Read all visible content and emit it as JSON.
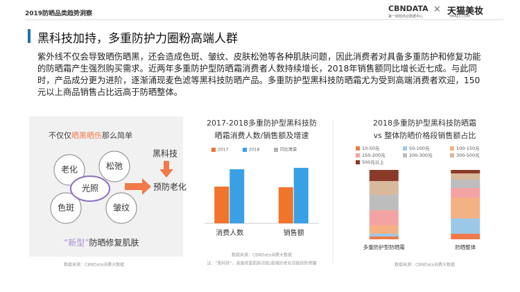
{
  "header": {
    "title": "2019防晒品类趋势洞察",
    "brand_1": "CBNDATA",
    "brand_1_sub": "第一财经商业数据中心",
    "brand_separator": "×",
    "brand_2": "天猫美妆",
    "brand_2_sub": "TMALL.COM"
  },
  "slide": {
    "title": "黑科技加持，多重防护力圈粉高端人群",
    "body": "紫外线不仅会导致晒伤晒黑，还会造成色斑、皱纹、皮肤松弛等各种肌肤问题，因此消费者对具备多重防护和修复功能的防晒霜产生强烈购买需求。近两年多重防护型防晒霜消费者人数持续增长，2018年销售额同比增长近七成。与此同时，产品成分更为进阶，逐渐涌现麦色滤等黑科技防晒产品。多重防护型黑科技防晒霜尤为受到高端消费者欢迎，150元以上商品销售占比远高于防晒整体。"
  },
  "diagram": {
    "heading_parts": [
      "不仅仅",
      "晒黑晒伤",
      "那么简单"
    ],
    "nodes": [
      "老化",
      "松弛",
      "光照",
      "色斑",
      "皱纹"
    ],
    "tech": "黑科技",
    "result": "预防老化",
    "caption_parts": [
      "“新型”",
      "防晒修复肌肤"
    ],
    "source": "数据来源：CBNData消费大数据"
  },
  "chart_data": [
    {
      "type": "bar",
      "title": "2017-2018多重防护型黑科技防",
      "subtitle": "晒霜消费人数/销售额及增速",
      "categories": [
        "消费人数",
        "销售额"
      ],
      "series": [
        {
          "name": "2017",
          "color": "#f0742c",
          "values": [
            53,
            52
          ]
        },
        {
          "name": "2018",
          "color": "#3aa0e6",
          "values": [
            78,
            80
          ]
        },
        {
          "name": "同比增速",
          "color": "#b0b0b0",
          "values": [
            null,
            null
          ]
        }
      ],
      "source": "数据来源：CBNData消费大数据",
      "note": "注：“黑科技”，具备修复肌肤功能/高端抗老化功能的防晒霜"
    },
    {
      "type": "stacked_bar",
      "title": "2018多重防护型黑科技防晒霜",
      "subtitle": "vs 整体防晒价格段销售额占比",
      "categories": [
        "多重防护型防晒霜",
        "防晒整体"
      ],
      "series": [
        {
          "name": "10-50元",
          "color": "#f07a4a",
          "values": [
            4,
            8
          ]
        },
        {
          "name": "50-100元",
          "color": "#9cc8e8",
          "values": [
            4,
            22
          ]
        },
        {
          "name": "100-150元",
          "color": "#f4b183",
          "values": [
            12,
            30
          ]
        },
        {
          "name": "150-200元",
          "color": "#f3a3a3",
          "values": [
            22,
            14
          ]
        },
        {
          "name": "200-300元",
          "color": "#bdbdbd",
          "values": [
            22,
            12
          ]
        },
        {
          "name": "300-500元",
          "color": "#d9b99b",
          "values": [
            20,
            9
          ]
        },
        {
          "name": "500元以上",
          "color": "#8b3a2a",
          "values": [
            16,
            5
          ]
        }
      ],
      "source": "数据来源：CBNData消费大数据"
    }
  ]
}
